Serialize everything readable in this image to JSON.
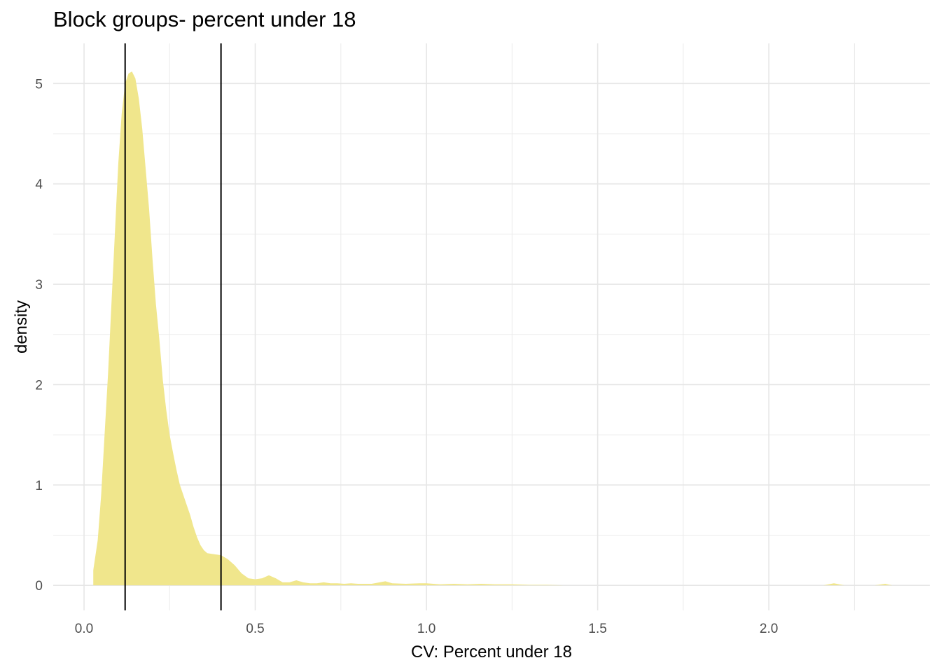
{
  "chart_data": {
    "type": "area",
    "title": "Block groups- percent under 18",
    "xlabel": "CV: Percent under 18",
    "ylabel": "density",
    "xlim": [
      -0.09,
      2.47
    ],
    "ylim": [
      -0.25,
      5.4
    ],
    "x_ticks": [
      0.0,
      0.5,
      1.0,
      1.5,
      2.0
    ],
    "x_tick_labels": [
      "0.0",
      "0.5",
      "1.0",
      "1.5",
      "2.0"
    ],
    "y_ticks": [
      0,
      1,
      2,
      3,
      4,
      5
    ],
    "y_tick_labels": [
      "0",
      "1",
      "2",
      "3",
      "4",
      "5"
    ],
    "grid": true,
    "fill_color": "#f0e68c",
    "vline_color": "#000000",
    "vlines": [
      0.12,
      0.4
    ],
    "series": [
      {
        "x": [
          0.027,
          0.03,
          0.04,
          0.05,
          0.06,
          0.07,
          0.08,
          0.09,
          0.1,
          0.11,
          0.12,
          0.13,
          0.14,
          0.15,
          0.16,
          0.17,
          0.18,
          0.19,
          0.2,
          0.21,
          0.22,
          0.23,
          0.24,
          0.25,
          0.26,
          0.27,
          0.28,
          0.29,
          0.3,
          0.31,
          0.32,
          0.33,
          0.34,
          0.35,
          0.36,
          0.38,
          0.4,
          0.42,
          0.44,
          0.46,
          0.48,
          0.5,
          0.52,
          0.54,
          0.56,
          0.58,
          0.6,
          0.62,
          0.64,
          0.66,
          0.68,
          0.7,
          0.72,
          0.74,
          0.76,
          0.78,
          0.8,
          0.84,
          0.88,
          0.9,
          0.94,
          0.98,
          1.0,
          1.04,
          1.08,
          1.12,
          1.16,
          1.2,
          1.25,
          1.3,
          1.35,
          1.4,
          1.45,
          1.5,
          1.55,
          1.6,
          1.7,
          1.8,
          1.9,
          2.0,
          2.1,
          2.16,
          2.19,
          2.22,
          2.25,
          2.28,
          2.31,
          2.34,
          2.36
        ],
        "y": [
          0.15,
          0.22,
          0.45,
          0.9,
          1.5,
          2.1,
          2.8,
          3.5,
          4.2,
          4.7,
          5.0,
          5.1,
          5.12,
          5.05,
          4.85,
          4.55,
          4.15,
          3.75,
          3.25,
          2.8,
          2.45,
          2.05,
          1.75,
          1.5,
          1.32,
          1.15,
          1.0,
          0.9,
          0.8,
          0.7,
          0.58,
          0.48,
          0.4,
          0.35,
          0.32,
          0.31,
          0.3,
          0.26,
          0.2,
          0.12,
          0.07,
          0.06,
          0.07,
          0.1,
          0.07,
          0.03,
          0.03,
          0.05,
          0.03,
          0.02,
          0.02,
          0.03,
          0.02,
          0.02,
          0.015,
          0.02,
          0.015,
          0.015,
          0.04,
          0.02,
          0.015,
          0.02,
          0.02,
          0.01,
          0.015,
          0.01,
          0.015,
          0.01,
          0.01,
          0.005,
          0.005,
          0.0,
          0.0,
          0.0,
          0.0,
          0.0,
          0.0,
          0.0,
          0.0,
          0.0,
          0.0,
          0.0,
          0.02,
          0.0,
          0.0,
          0.0,
          0.0,
          0.015,
          0.0
        ]
      }
    ]
  }
}
